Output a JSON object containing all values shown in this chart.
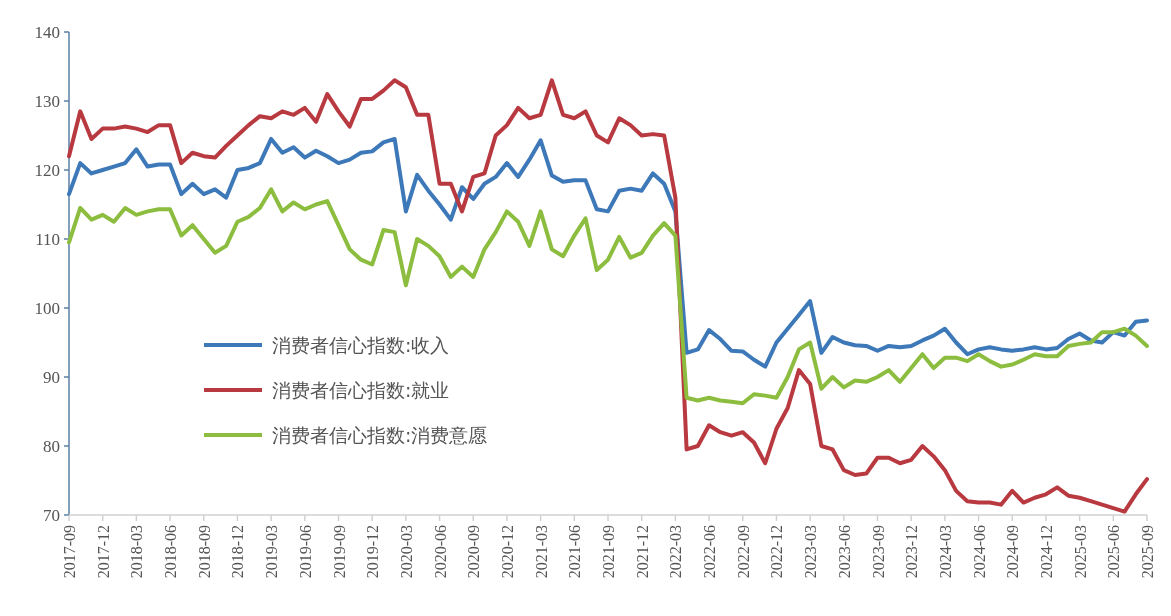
{
  "chart_data": {
    "type": "line",
    "x": [
      "2017-09",
      "2017-10",
      "2017-11",
      "2017-12",
      "2018-01",
      "2018-02",
      "2018-03",
      "2018-04",
      "2018-05",
      "2018-06",
      "2018-07",
      "2018-08",
      "2018-09",
      "2018-10",
      "2018-11",
      "2018-12",
      "2019-01",
      "2019-02",
      "2019-03",
      "2019-04",
      "2019-05",
      "2019-06",
      "2019-07",
      "2019-08",
      "2019-09",
      "2019-10",
      "2019-11",
      "2019-12",
      "2020-01",
      "2020-02",
      "2020-03",
      "2020-04",
      "2020-05",
      "2020-06",
      "2020-07",
      "2020-08",
      "2020-09",
      "2020-10",
      "2020-11",
      "2020-12",
      "2021-01",
      "2021-02",
      "2021-03",
      "2021-04",
      "2021-05",
      "2021-06",
      "2021-07",
      "2021-08",
      "2021-09",
      "2021-10",
      "2021-11",
      "2021-12",
      "2022-01",
      "2022-02",
      "2022-03",
      "2022-04",
      "2022-05",
      "2022-06",
      "2022-07",
      "2022-08",
      "2022-09",
      "2022-10",
      "2022-11",
      "2022-12",
      "2023-01",
      "2023-02",
      "2023-03",
      "2023-04",
      "2023-05",
      "2023-06",
      "2023-07",
      "2023-08",
      "2023-09",
      "2023-10",
      "2023-11",
      "2023-12",
      "2024-01",
      "2024-02",
      "2024-03",
      "2024-04",
      "2024-05",
      "2024-06",
      "2024-07",
      "2024-08",
      "2024-09",
      "2024-10",
      "2024-11",
      "2024-12",
      "2025-01",
      "2025-02",
      "2025-03",
      "2025-04",
      "2025-05",
      "2025-06",
      "2025-07",
      "2025-08",
      "2025-09"
    ],
    "series": [
      {
        "name": "消费者信心指数:收入",
        "color": "#3d78b8",
        "values": [
          116.5,
          121,
          119.5,
          120,
          120.5,
          121,
          123,
          120.5,
          120.8,
          120.8,
          116.5,
          118,
          116.5,
          117.2,
          116,
          120,
          120.3,
          121,
          124.5,
          122.5,
          123.3,
          121.8,
          122.8,
          122,
          121,
          121.5,
          122.5,
          122.7,
          124,
          124.5,
          114,
          119.3,
          117,
          115,
          112.8,
          117.5,
          115.8,
          118,
          119,
          121,
          119,
          121.5,
          124.3,
          119.2,
          118.3,
          118.5,
          118.5,
          114.3,
          114,
          117,
          117.3,
          117,
          119.5,
          118,
          114,
          93.5,
          94,
          96.8,
          95.5,
          93.8,
          93.7,
          92.5,
          91.5,
          95,
          97,
          99,
          101,
          93.5,
          95.8,
          95,
          94.6,
          94.5,
          93.8,
          94.5,
          94.3,
          94.5,
          95.3,
          96,
          97,
          95,
          93.3,
          94,
          94.3,
          94,
          93.8,
          94,
          94.3,
          94,
          94.2,
          95.5,
          96.3,
          95.3,
          95,
          96.5,
          96,
          98,
          98.2
        ]
      },
      {
        "name": "消费者信心指数:就业",
        "color": "#b8393f",
        "values": [
          122,
          128.5,
          124.5,
          126,
          126,
          126.3,
          126,
          125.5,
          126.5,
          126.5,
          121,
          122.5,
          122,
          121.8,
          123.5,
          125,
          126.5,
          127.8,
          127.5,
          128.5,
          128,
          129,
          127,
          131,
          128.5,
          126.3,
          130.3,
          130.3,
          131.5,
          133,
          132,
          128,
          128,
          118,
          118,
          114,
          119,
          119.5,
          125,
          126.5,
          129,
          127.5,
          128,
          133,
          128,
          127.5,
          128.5,
          125,
          124,
          127.5,
          126.5,
          125,
          125.2,
          125,
          116,
          79.5,
          80,
          83,
          82,
          81.5,
          82,
          80.5,
          77.5,
          82.5,
          85.5,
          91,
          89,
          80,
          79.5,
          76.5,
          75.8,
          76,
          78.3,
          78.3,
          77.5,
          78,
          80,
          78.5,
          76.5,
          73.5,
          72,
          71.8,
          71.8,
          71.5,
          73.5,
          71.8,
          72.5,
          73,
          74,
          72.8,
          72.5,
          72,
          71.5,
          71,
          70.5,
          73,
          75.2
        ]
      },
      {
        "name": "消费者信心指数:消费意愿",
        "color": "#8cbd3f",
        "values": [
          109.5,
          114.5,
          112.8,
          113.5,
          112.5,
          114.5,
          113.5,
          114,
          114.3,
          114.3,
          110.5,
          112,
          110,
          108,
          109,
          112.5,
          113.2,
          114.5,
          117.2,
          114,
          115.3,
          114.3,
          115,
          115.5,
          112,
          108.5,
          107,
          106.3,
          111.3,
          111,
          103.3,
          110,
          109,
          107.5,
          104.5,
          106,
          104.5,
          108.5,
          111,
          114,
          112.5,
          109,
          114,
          108.5,
          107.5,
          110.5,
          113,
          105.5,
          107,
          110.3,
          107.3,
          108,
          110.5,
          112.3,
          110.5,
          87,
          86.6,
          87,
          86.6,
          86.4,
          86.2,
          87.5,
          87.3,
          87,
          90,
          94,
          95,
          88.3,
          90,
          88.5,
          89.5,
          89.3,
          90,
          91,
          89.3,
          91.3,
          93.3,
          91.3,
          92.8,
          92.8,
          92.3,
          93.3,
          92.3,
          91.5,
          91.8,
          92.5,
          93.3,
          93,
          93,
          94.5,
          94.8,
          95,
          96.5,
          96.5,
          97,
          96,
          94.5
        ]
      }
    ],
    "xlim": [
      "2017-09",
      "2025-09"
    ],
    "xticks": [
      "2017-09",
      "2017-12",
      "2018-03",
      "2018-06",
      "2018-09",
      "2018-12",
      "2019-03",
      "2019-06",
      "2019-09",
      "2019-12",
      "2020-03",
      "2020-06",
      "2020-09",
      "2020-12",
      "2021-03",
      "2021-06",
      "2021-09",
      "2021-12",
      "2022-03",
      "2022-06",
      "2022-09",
      "2022-12",
      "2023-03",
      "2023-06",
      "2023-09",
      "2023-12",
      "2024-03",
      "2024-06",
      "2024-09",
      "2024-12",
      "2025-03",
      "2025-06",
      "2025-09"
    ],
    "ylim": [
      70,
      140
    ],
    "yticks": [
      70,
      80,
      90,
      100,
      110,
      120,
      130,
      140
    ],
    "legend": "bottom left",
    "grid": false,
    "marker": "none",
    "line_style": "solid"
  }
}
